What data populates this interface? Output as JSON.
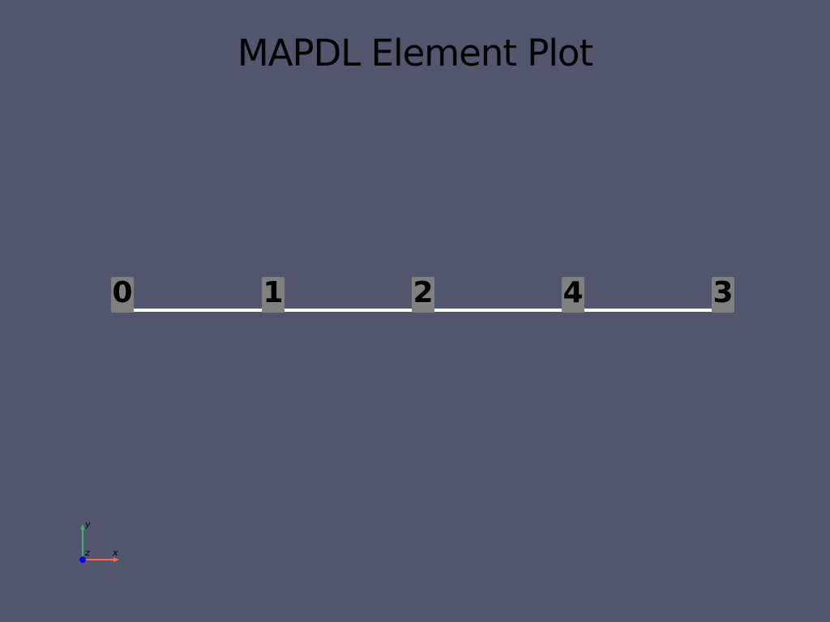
{
  "title": "MAPDL Element Plot",
  "colors": {
    "background": "#52566e",
    "beam": "#ffffff",
    "label_box": "#808080",
    "label_text": "#000000",
    "axis_x": "#ff6a4a",
    "axis_y": "#3cb371",
    "axis_z": "#0000ff"
  },
  "nodes": [
    {
      "label": "0"
    },
    {
      "label": "1"
    },
    {
      "label": "2"
    },
    {
      "label": "4"
    },
    {
      "label": "3"
    }
  ],
  "axes": {
    "x_label": "x",
    "y_label": "y",
    "z_label": "z"
  }
}
